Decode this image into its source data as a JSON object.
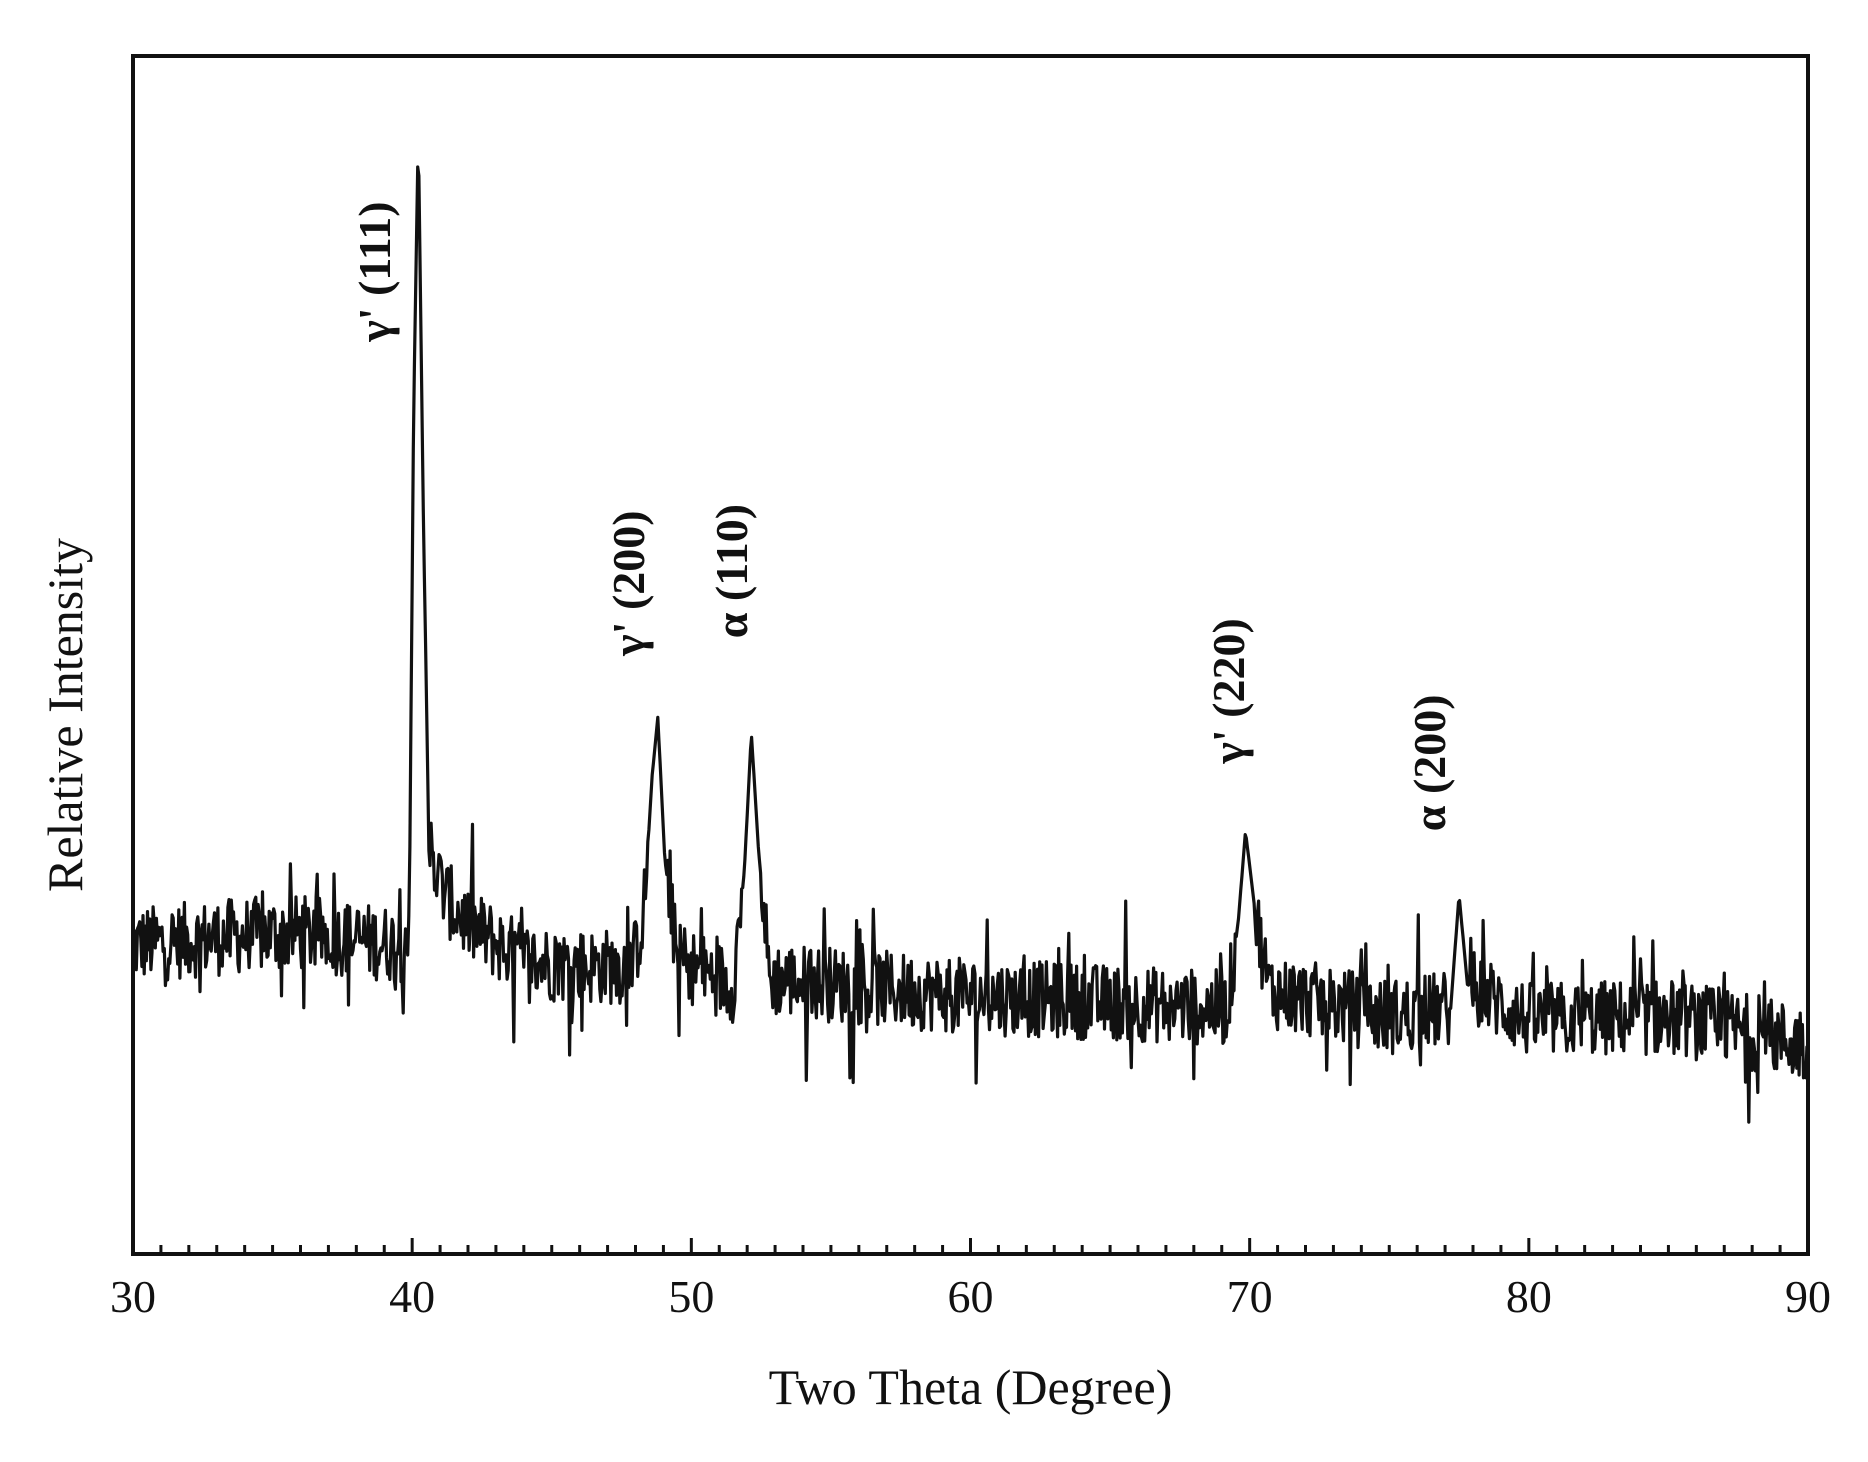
{
  "chart_data": {
    "type": "line",
    "xlabel": "Two Theta (Degree)",
    "ylabel": "Relative Intensity",
    "xlim": [
      30,
      90
    ],
    "ylim": [
      0,
      100
    ],
    "xticks": [
      30,
      40,
      50,
      60,
      70,
      80,
      90
    ],
    "minor_x_step": 1,
    "y_tick_labels_shown": false,
    "grid": false,
    "legend": "none",
    "line_color": "#111111",
    "series": [
      {
        "noise_amplitude": 3.2,
        "points": [
          {
            "x": 30.0,
            "y": 25.8
          },
          {
            "x": 32.0,
            "y": 26.2
          },
          {
            "x": 34.0,
            "y": 26.6
          },
          {
            "x": 36.0,
            "y": 26.8
          },
          {
            "x": 38.0,
            "y": 26.2
          },
          {
            "x": 39.7,
            "y": 25.8
          },
          {
            "x": 39.9,
            "y": 28.5
          },
          {
            "x": 40.05,
            "y": 70.0
          },
          {
            "x": 40.22,
            "y": 93.5
          },
          {
            "x": 40.4,
            "y": 62.0
          },
          {
            "x": 40.6,
            "y": 34.0
          },
          {
            "x": 40.9,
            "y": 31.5
          },
          {
            "x": 41.3,
            "y": 29.5
          },
          {
            "x": 42.0,
            "y": 27.5
          },
          {
            "x": 44.0,
            "y": 24.5
          },
          {
            "x": 46.0,
            "y": 24.0
          },
          {
            "x": 47.9,
            "y": 24.0
          },
          {
            "x": 48.3,
            "y": 28.5
          },
          {
            "x": 48.6,
            "y": 40.0
          },
          {
            "x": 48.8,
            "y": 44.8
          },
          {
            "x": 49.05,
            "y": 33.0
          },
          {
            "x": 49.5,
            "y": 24.5
          },
          {
            "x": 51.5,
            "y": 22.5
          },
          {
            "x": 51.9,
            "y": 32.0
          },
          {
            "x": 52.15,
            "y": 43.5
          },
          {
            "x": 52.4,
            "y": 34.0
          },
          {
            "x": 52.8,
            "y": 23.0
          },
          {
            "x": 55.0,
            "y": 22.5
          },
          {
            "x": 60.0,
            "y": 21.5
          },
          {
            "x": 65.0,
            "y": 21.0
          },
          {
            "x": 69.2,
            "y": 20.5
          },
          {
            "x": 69.6,
            "y": 28.0
          },
          {
            "x": 69.85,
            "y": 35.3
          },
          {
            "x": 70.2,
            "y": 28.5
          },
          {
            "x": 70.7,
            "y": 22.0
          },
          {
            "x": 75.0,
            "y": 19.8
          },
          {
            "x": 77.2,
            "y": 20.5
          },
          {
            "x": 77.5,
            "y": 30.0
          },
          {
            "x": 77.8,
            "y": 22.5
          },
          {
            "x": 80.0,
            "y": 19.5
          },
          {
            "x": 85.0,
            "y": 19.8
          },
          {
            "x": 88.0,
            "y": 18.5
          },
          {
            "x": 90.0,
            "y": 17.5
          }
        ]
      }
    ],
    "annotations": [
      {
        "text": "γ' (111)",
        "x": 39.2,
        "y": 82.0
      },
      {
        "text": "γ' (200)",
        "x": 48.3,
        "y": 56.0
      },
      {
        "text": "α (110)",
        "x": 52.0,
        "y": 57.0
      },
      {
        "text": "γ' (220)",
        "x": 69.8,
        "y": 47.0
      },
      {
        "text": "α (200)",
        "x": 77.0,
        "y": 41.0
      }
    ]
  }
}
